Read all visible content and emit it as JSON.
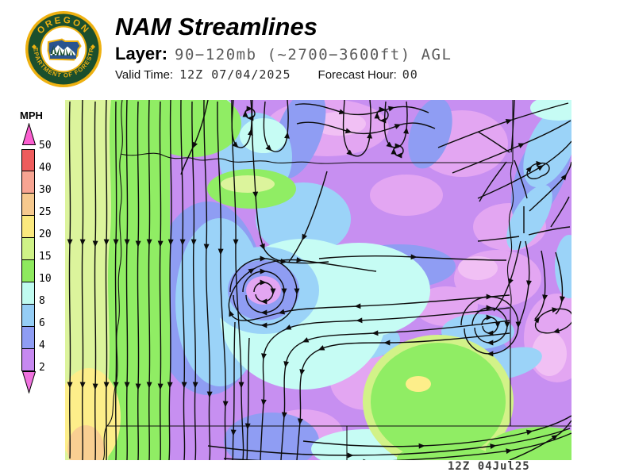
{
  "header": {
    "title": "NAM Streamlines",
    "layer_label": "Layer:",
    "layer_value": "90−120mb (~2700−3600ft) AGL",
    "valid_time_label": "Valid Time:",
    "valid_time_value": "12Z 07/04/2025",
    "forecast_hour_label": "Forecast Hour:",
    "forecast_hour_value": "00"
  },
  "logo": {
    "top_text": "OREGON",
    "bottom_text": "DEPARTMENT OF FORESTRY",
    "gold": "#eeb111",
    "ring_green": "#1b4f2d",
    "shield_blue": "#2a548f"
  },
  "legend": {
    "title": "MPH",
    "ticks": [
      "50",
      "40",
      "30",
      "25",
      "20",
      "15",
      "10",
      "8",
      "6",
      "4",
      "2"
    ],
    "segment_colors": [
      "#ee5c5c",
      "#f7a492",
      "#f6c98e",
      "#fbe97e",
      "#cff287",
      "#8ee95e",
      "#c0fbf0",
      "#95cdf5",
      "#8f9df3",
      "#c689f0"
    ],
    "arrow_top_color": "#fb5ed0",
    "arrow_bottom_color": "#ef72df"
  },
  "map": {
    "timestamp": "12Z 04Jul25",
    "field_colors": {
      "calm_under_2mph": "#e3a6f2",
      "2_4mph_violet": "#c78ff1",
      "4_6mph_periwinkle": "#8f9df3",
      "6_8mph_blue": "#9bd3f8",
      "8_10mph_cyan": "#c6fcf4",
      "10_15mph_green": "#90ed64",
      "15_20mph_yellowgreen": "#dcf49c",
      "20_25mph_yellow": "#fdee8a",
      "25_30mph_orange": "#f9cf92"
    }
  }
}
